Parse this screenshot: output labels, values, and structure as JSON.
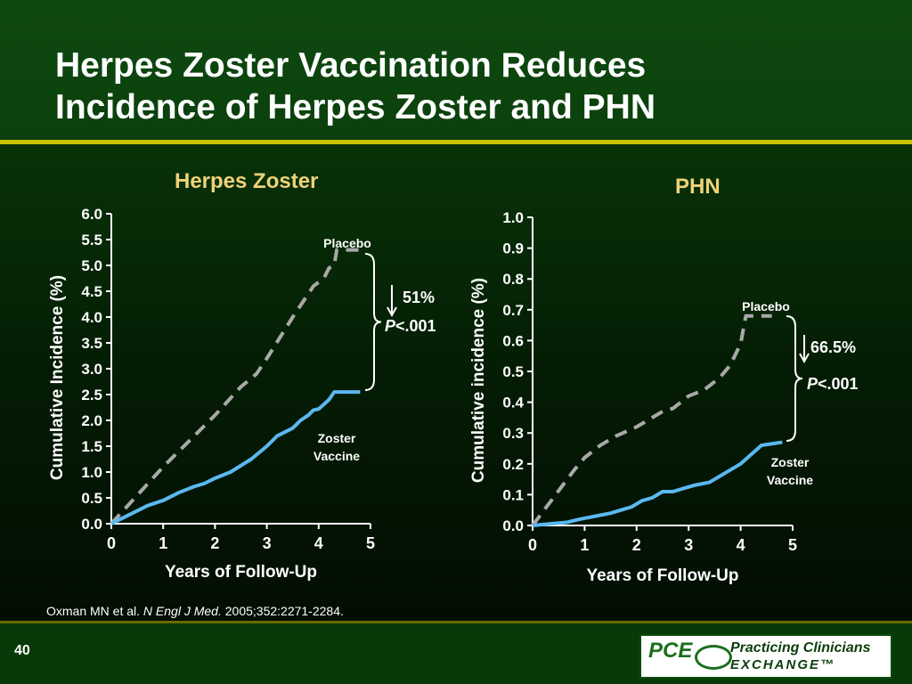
{
  "slide": {
    "title_line1": "Herpes Zoster Vaccination Reduces",
    "title_line2": "Incidence of Herpes Zoster and PHN",
    "citation_authors": "Oxman MN et al.",
    "citation_journal": "N Engl J Med.",
    "citation_ref": "2005;352:2271-2284.",
    "page_number": "40",
    "logo": {
      "mark": "PCE",
      "line1": "Practicing Clinicians",
      "line2": "EXCHANGE™"
    }
  },
  "chart_data": [
    {
      "type": "line",
      "title": "Herpes Zoster",
      "xlabel": "Years of Follow-Up",
      "ylabel": "Cumulative Incidence (%)",
      "xlim": [
        0,
        5
      ],
      "ylim": [
        0,
        6
      ],
      "x_ticks": [
        "0",
        "1",
        "2",
        "3",
        "4",
        "5"
      ],
      "y_ticks": [
        "0.0",
        "0.5",
        "1.0",
        "1.5",
        "2.0",
        "2.5",
        "3.0",
        "3.5",
        "4.0",
        "4.5",
        "5.0",
        "5.5",
        "6.0"
      ],
      "series": [
        {
          "name": "Placebo",
          "style": "dashed",
          "color": "#a9a9a9",
          "x": [
            0,
            0.5,
            1,
            1.5,
            2,
            2.5,
            2.8,
            3,
            3.5,
            3.9,
            4.1,
            4.2,
            4.3,
            4.35,
            4.8
          ],
          "y": [
            0,
            0.55,
            1.1,
            1.6,
            2.1,
            2.65,
            2.9,
            3.2,
            4.0,
            4.6,
            4.75,
            4.95,
            5.0,
            5.3,
            5.3
          ]
        },
        {
          "name": "Zoster Vaccine",
          "style": "solid",
          "color": "#5bb8f0",
          "x": [
            0,
            0.4,
            0.7,
            1,
            1.3,
            1.6,
            1.8,
            2,
            2.3,
            2.7,
            3,
            3.2,
            3.5,
            3.65,
            3.8,
            3.9,
            4,
            4.2,
            4.3,
            4.8
          ],
          "y": [
            0,
            0.2,
            0.35,
            0.45,
            0.6,
            0.72,
            0.78,
            0.88,
            1.0,
            1.25,
            1.5,
            1.7,
            1.85,
            2.0,
            2.1,
            2.2,
            2.22,
            2.4,
            2.55,
            2.55
          ]
        }
      ],
      "annotations": {
        "reduction": "51%",
        "p_label": "P",
        "p_value": "<.001"
      }
    },
    {
      "type": "line",
      "title": "PHN",
      "xlabel": "Years of Follow-Up",
      "ylabel": "Cumulative incidence (%)",
      "xlim": [
        0,
        5
      ],
      "ylim": [
        0,
        1
      ],
      "x_ticks": [
        "0",
        "1",
        "2",
        "3",
        "4",
        "5"
      ],
      "y_ticks": [
        "0.0",
        "0.1",
        "0.2",
        "0.3",
        "0.4",
        "0.5",
        "0.6",
        "0.7",
        "0.8",
        "0.9",
        "1.0"
      ],
      "series": [
        {
          "name": "Placebo",
          "style": "dashed",
          "color": "#a9a9a9",
          "x": [
            0,
            0.4,
            0.8,
            1,
            1.3,
            1.6,
            2,
            2.3,
            2.5,
            2.7,
            3,
            3.3,
            3.6,
            3.8,
            4.0,
            4.1,
            4.6
          ],
          "y": [
            0,
            0.09,
            0.18,
            0.22,
            0.26,
            0.29,
            0.32,
            0.35,
            0.37,
            0.38,
            0.42,
            0.44,
            0.48,
            0.52,
            0.59,
            0.68,
            0.68
          ]
        },
        {
          "name": "Zoster Vaccine",
          "style": "solid",
          "color": "#5bb8f0",
          "x": [
            0,
            0.65,
            0.9,
            1.2,
            1.5,
            1.7,
            1.9,
            2.1,
            2.3,
            2.5,
            2.7,
            2.9,
            3.1,
            3.4,
            3.7,
            4.0,
            4.4,
            4.8
          ],
          "y": [
            0,
            0.01,
            0.02,
            0.03,
            0.04,
            0.05,
            0.06,
            0.08,
            0.09,
            0.11,
            0.11,
            0.12,
            0.13,
            0.14,
            0.17,
            0.2,
            0.26,
            0.27
          ]
        }
      ],
      "annotations": {
        "reduction": "66.5%",
        "p_label": "P",
        "p_value": "<.001"
      }
    }
  ]
}
